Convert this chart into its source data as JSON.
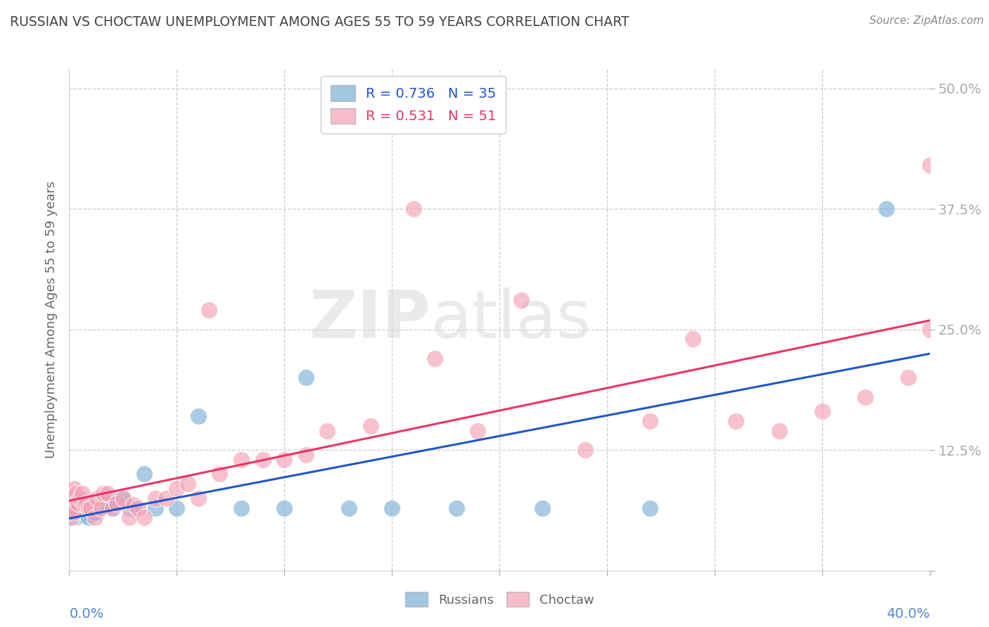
{
  "title": "RUSSIAN VS CHOCTAW UNEMPLOYMENT AMONG AGES 55 TO 59 YEARS CORRELATION CHART",
  "source": "Source: ZipAtlas.com",
  "ylabel": "Unemployment Among Ages 55 to 59 years",
  "russian_color": "#7BAFD4",
  "choctaw_color": "#F4A0B5",
  "russian_line_color": "#2255CC",
  "choctaw_line_color": "#EE3366",
  "legend_r_russian": "0.736",
  "legend_n_russian": "35",
  "legend_r_choctaw": "0.531",
  "legend_n_choctaw": "51",
  "russians_x": [
    0.001,
    0.002,
    0.002,
    0.003,
    0.003,
    0.004,
    0.005,
    0.006,
    0.007,
    0.008,
    0.009,
    0.01,
    0.011,
    0.012,
    0.014,
    0.016,
    0.018,
    0.02,
    0.022,
    0.025,
    0.028,
    0.03,
    0.035,
    0.04,
    0.05,
    0.06,
    0.08,
    0.1,
    0.11,
    0.13,
    0.15,
    0.18,
    0.22,
    0.27,
    0.38
  ],
  "russians_y": [
    0.055,
    0.056,
    0.058,
    0.057,
    0.06,
    0.056,
    0.058,
    0.06,
    0.057,
    0.058,
    0.055,
    0.058,
    0.06,
    0.06,
    0.065,
    0.07,
    0.07,
    0.065,
    0.07,
    0.075,
    0.065,
    0.065,
    0.1,
    0.065,
    0.065,
    0.16,
    0.065,
    0.065,
    0.2,
    0.065,
    0.065,
    0.065,
    0.065,
    0.065,
    0.375
  ],
  "choctaws_x": [
    0.001,
    0.001,
    0.002,
    0.002,
    0.003,
    0.004,
    0.005,
    0.006,
    0.007,
    0.008,
    0.009,
    0.01,
    0.012,
    0.013,
    0.015,
    0.016,
    0.018,
    0.02,
    0.022,
    0.025,
    0.028,
    0.03,
    0.032,
    0.035,
    0.04,
    0.045,
    0.05,
    0.055,
    0.06,
    0.065,
    0.07,
    0.08,
    0.09,
    0.1,
    0.11,
    0.12,
    0.14,
    0.16,
    0.17,
    0.19,
    0.21,
    0.24,
    0.27,
    0.29,
    0.31,
    0.33,
    0.35,
    0.37,
    0.39,
    0.4,
    0.4
  ],
  "choctaws_y": [
    0.055,
    0.065,
    0.06,
    0.085,
    0.08,
    0.07,
    0.075,
    0.08,
    0.068,
    0.07,
    0.065,
    0.065,
    0.055,
    0.075,
    0.065,
    0.08,
    0.08,
    0.065,
    0.07,
    0.075,
    0.055,
    0.068,
    0.065,
    0.055,
    0.075,
    0.075,
    0.085,
    0.09,
    0.075,
    0.27,
    0.1,
    0.115,
    0.115,
    0.115,
    0.12,
    0.145,
    0.15,
    0.375,
    0.22,
    0.145,
    0.28,
    0.125,
    0.155,
    0.24,
    0.155,
    0.145,
    0.165,
    0.18,
    0.2,
    0.42,
    0.25
  ],
  "watermark_zip": "ZIP",
  "watermark_atlas": "atlas",
  "background_color": "#FFFFFF",
  "plot_bg_color": "#FFFFFF",
  "grid_color": "#CCCCCC",
  "title_color": "#444444",
  "tick_label_color": "#5588CC",
  "ylabel_color": "#666666",
  "xlim": [
    0.0,
    0.4
  ],
  "ylim": [
    0.0,
    0.52
  ],
  "ytick_vals": [
    0.0,
    0.125,
    0.25,
    0.375,
    0.5
  ],
  "ytick_labels": [
    "",
    "12.5%",
    "25.0%",
    "37.5%",
    "50.0%"
  ]
}
